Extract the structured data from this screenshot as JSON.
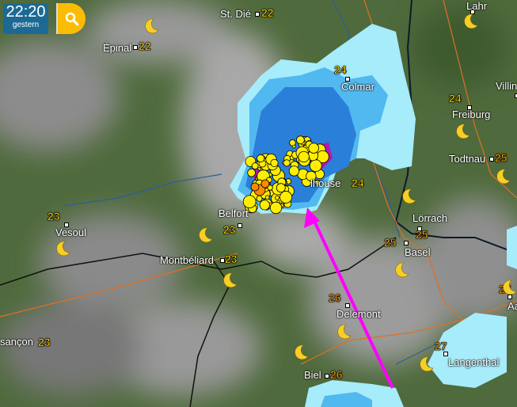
{
  "header": {
    "time": "22:20",
    "day": "gestern",
    "search_icon": "search-icon"
  },
  "colors": {
    "accent": "#fbbc04",
    "time_bg": "#1c6a94",
    "arrow": "#ff00ff",
    "lightning": "#ffee00",
    "radar_light": "#a6ecfa",
    "radar_mid": "#52b8f0",
    "radar_dark": "#2a7fd8",
    "radar_heavy": "#b01ab0"
  },
  "cities": [
    {
      "name": "St. Dié",
      "temp": "22"
    },
    {
      "name": "Épinal",
      "temp": "22"
    },
    {
      "name": "Lahr",
      "temp": ""
    },
    {
      "name": "Colmar",
      "temp": "24"
    },
    {
      "name": "Villin",
      "temp": ""
    },
    {
      "name": "Freiburg",
      "temp": "24"
    },
    {
      "name": "Todtnau",
      "temp": "25"
    },
    {
      "name": "lhouse",
      "temp": "24"
    },
    {
      "name": "Belfort",
      "temp": "23"
    },
    {
      "name": "Vesoul",
      "temp": "23"
    },
    {
      "name": "Lörrach",
      "temp": "25"
    },
    {
      "name": "Basel",
      "temp": "25"
    },
    {
      "name": "Montbéliard",
      "temp": "23"
    },
    {
      "name": "Delemont",
      "temp": "26"
    },
    {
      "name": "Aa",
      "temp": "27"
    },
    {
      "name": "sançon",
      "temp": "23"
    },
    {
      "name": "Biel",
      "temp": "26"
    },
    {
      "name": "Langenthal",
      "temp": "27"
    }
  ],
  "weather_icon": "moon-icon"
}
